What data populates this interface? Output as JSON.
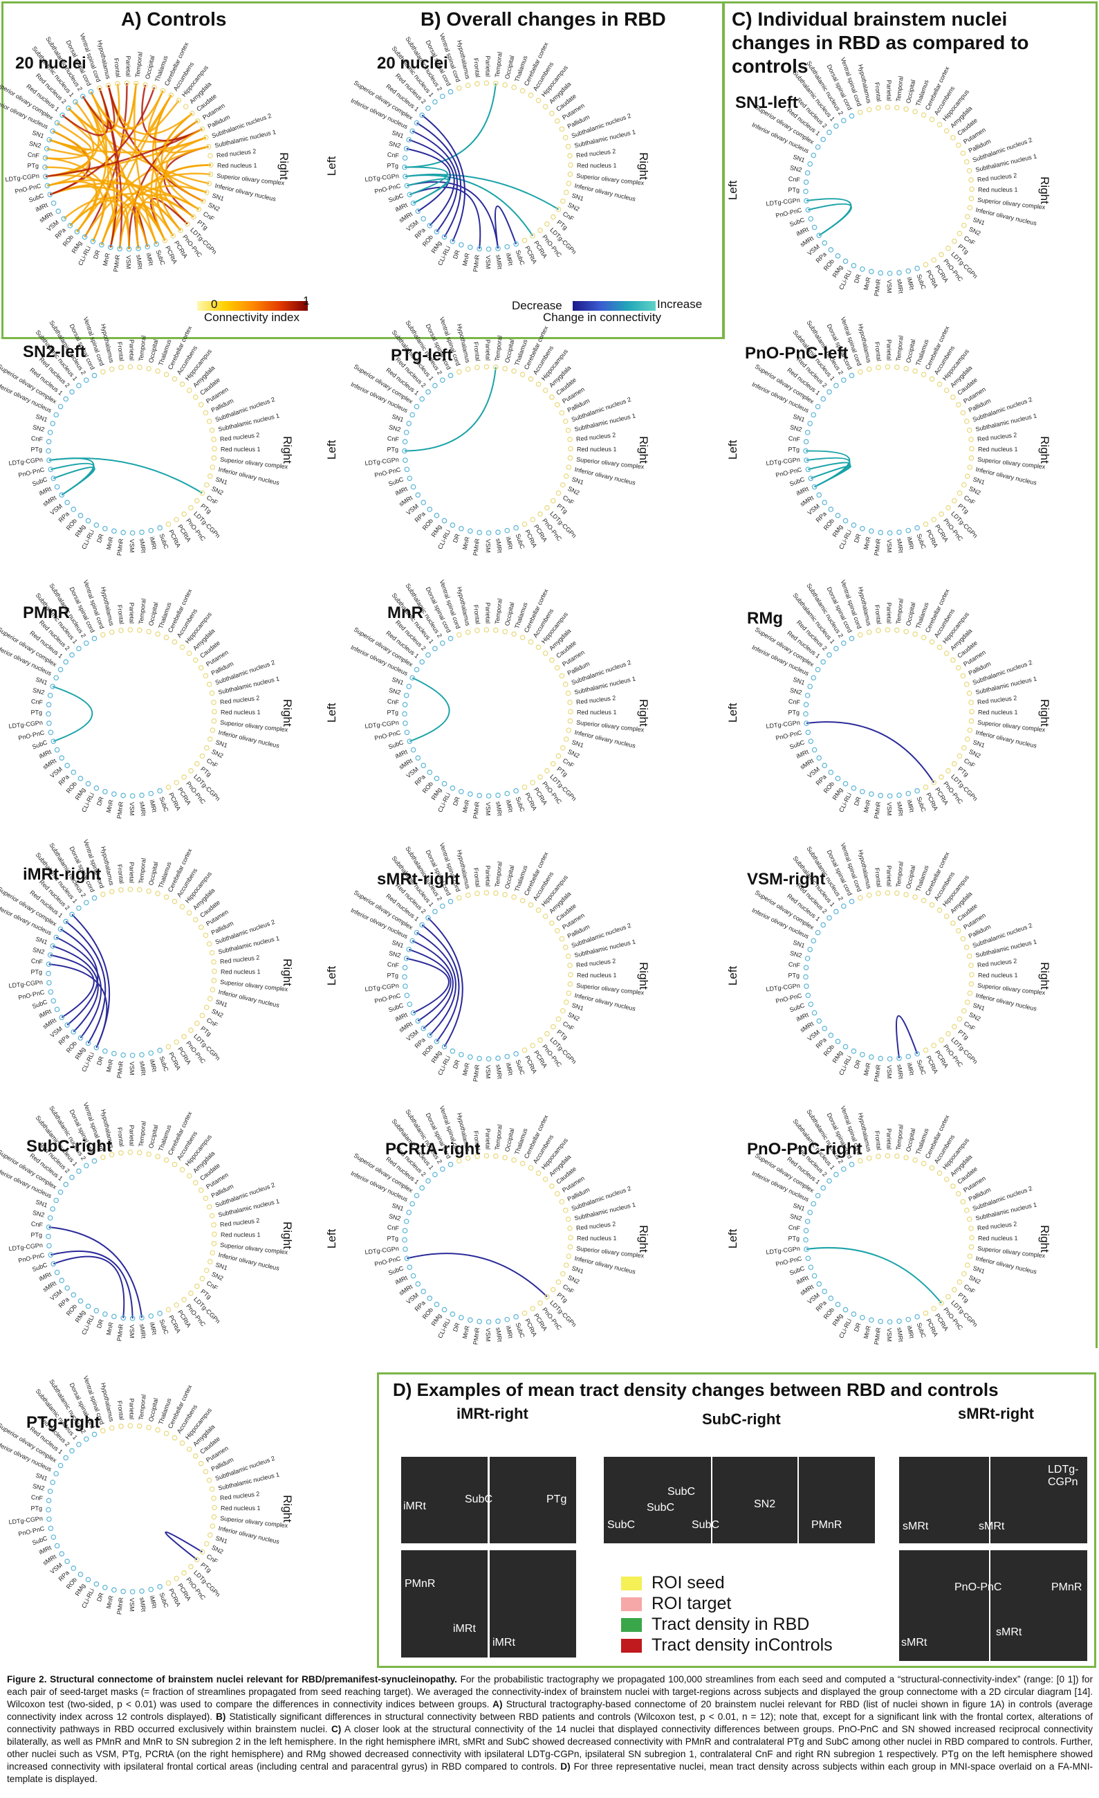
{
  "panelA": {
    "title": "A) Controls",
    "count": "20 nuclei",
    "cb_min": "0",
    "cb_max": "1",
    "cb_label": "Connectivity index"
  },
  "panelB": {
    "title": "B) Overall changes in RBD",
    "count": "20 nuclei",
    "cb_decrease": "Decrease",
    "cb_increase": "Increase",
    "cb_label": "Change in connectivity"
  },
  "panelC": {
    "title_l1": "C) Individual brainstem nuclei",
    "title_l2": "changes in RBD as compared to",
    "title_l3": "controls"
  },
  "side": {
    "left": "Left",
    "right": "Right"
  },
  "diagrams": [
    {
      "label": "SN1-left"
    },
    {
      "label": "SN2-left"
    },
    {
      "label": "PTg-left"
    },
    {
      "label": "PnO-PnC-left"
    },
    {
      "label": "PMnR"
    },
    {
      "label": "MnR"
    },
    {
      "label": "RMg"
    },
    {
      "label": "iMRt-right"
    },
    {
      "label": "sMRt-right"
    },
    {
      "label": "VSM-right"
    },
    {
      "label": "SubC-right"
    },
    {
      "label": "PCRtA-right"
    },
    {
      "label": "PnO-PnC-right"
    },
    {
      "label": "PTg-right"
    }
  ],
  "circle_labels": {
    "top": [
      "Dorsal spinal cord",
      "Ventral spinal cord",
      "Hypothalamus",
      "Frontal",
      "Parietal",
      "Temporal",
      "Occipital",
      "Thalamus",
      "Cerebellar cortex",
      "Accumbens",
      "Hippocampus",
      "Amygdala"
    ],
    "left": [
      "Subthalamic nucleus 2",
      "Subthalamic nucleus 1",
      "Red nucleus 2",
      "Red nucleus 1",
      "Superior olivary complex",
      "Inferior olivary nucleus",
      "SN1",
      "SN2",
      "CnF",
      "PTg",
      "LDTg-CGPn",
      "PnO-PnC"
    ],
    "right": [
      "Caudate",
      "Putamen",
      "Pallidum",
      "Subthalamic nucleus 2",
      "Subthalamic nucleus 1",
      "Red nucleus 2",
      "Red nucleus 1",
      "Superior olivary complex",
      "Inferior olivary nucleus",
      "SN1",
      "SN2",
      "CnF",
      "PTg",
      "LDTg-CGPn",
      "PnO-PnC",
      "PCRtA"
    ],
    "bottom": [
      "PCRtA",
      "SubC",
      "iMRt",
      "sMRt",
      "VSM",
      "PMnR",
      "MnR",
      "DR",
      "CLi-RLi",
      "RMg",
      "ROb",
      "RPa",
      "VSM",
      "sMRt",
      "iMRt",
      "SubC"
    ]
  },
  "panelD": {
    "title": "D) Examples of mean tract density changes between RBD and controls",
    "sub1": "iMRt-right",
    "sub2": "SubC-right",
    "sub3": "sMRt-right",
    "tags": [
      "iMRt",
      "SubC",
      "PTg",
      "PMnR",
      "iMRt",
      "iMRt",
      "SubC",
      "SubC",
      "SubC",
      "SN2",
      "PMnR",
      "SubC",
      "sMRt",
      "sMRt",
      "LDTg-CGPn",
      "PMnR",
      "PnO-PnC",
      "sMRt",
      "sMRt"
    ],
    "legend": [
      {
        "label": "ROI seed",
        "color": "#f5f056"
      },
      {
        "label": "ROI target",
        "color": "#f6a7a7"
      },
      {
        "label": "Tract density in RBD",
        "color": "#3aa64a"
      },
      {
        "label": "Tract density inControls",
        "color": "#c0191e"
      }
    ]
  },
  "caption": {
    "head": "Figure 2. Structural connectome of brainstem nuclei relevant for RBD/premanifest-synucleinopathy.",
    "body": " For the probabilistic tractography we propagated 100,000 streamlines from each seed and computed a “structural-connectivity-index” (range: [0 1]) for each pair of seed-target masks (= fraction of streamlines propagated from seed reaching target). We averaged the connectivity-index of brainstem nuclei with target-regions across subjects and displayed the group connectome with a 2D circular diagram [14]. Wilcoxon test (two-sided, p < 0.01) was used to compare the differences in connectivity indices between groups.",
    "a_head": " A)",
    "a_body": " Structural tractography-based connectome of 20 brainstem nuclei relevant for RBD (list of nuclei shown in figure 1A) in controls (average connectivity index across 12 controls displayed).",
    "b_head": " B)",
    "b_body": " Statistically significant differences in structural connectivity between RBD patients and controls (Wilcoxon test, p < 0.01, n = 12); note that, except for a significant link with the frontal cortex, alterations of connectivity pathways in RBD occurred exclusively within brainstem nuclei.",
    "c_head": " C)",
    "c_body": " A closer look at the structural connectivity of the 14 nuclei that displayed connectivity differences between groups. PnO-PnC and SN showed increased reciprocal connectivity bilaterally, as well as PMnR and MnR to SN subregion 2 in the left hemisphere. In the right hemisphere iMRt, sMRt and SubC showed decreased connectivity with PMnR and contralateral PTg and SubC among other nuclei in RBD compared to controls. Further, other nuclei such as VSM, PTg, PCRtA (on the right hemisphere) and RMg showed decreased connectivity with ipsilateral LDTg-CGPn, ipsilateral SN subregion 1, contralateral CnF and right RN subregion 1 respectively. PTg on the left hemisphere showed increased connectivity with ipsilateral frontal cortical areas (including central and paracentral gyrus) in RBD compared to controls.",
    "d_head": " D)",
    "d_body": " For three representative nuclei, mean tract density across subjects within each group in MNI-space overlaid on a FA-MNI-template is displayed."
  }
}
